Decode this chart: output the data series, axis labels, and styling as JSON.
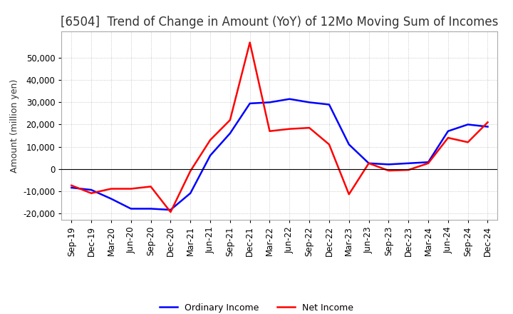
{
  "title": "[6504]  Trend of Change in Amount (YoY) of 12Mo Moving Sum of Incomes",
  "ylabel": "Amount (million yen)",
  "ylim": [
    -23000,
    62000
  ],
  "yticks": [
    -20000,
    -10000,
    0,
    10000,
    20000,
    30000,
    40000,
    50000
  ],
  "legend_labels": [
    "Ordinary Income",
    "Net Income"
  ],
  "line_colors": [
    "blue",
    "red"
  ],
  "x_labels": [
    "Sep-19",
    "Dec-19",
    "Mar-20",
    "Jun-20",
    "Sep-20",
    "Dec-20",
    "Mar-21",
    "Jun-21",
    "Sep-21",
    "Dec-21",
    "Mar-22",
    "Jun-22",
    "Sep-22",
    "Dec-22",
    "Mar-23",
    "Jun-23",
    "Sep-23",
    "Dec-23",
    "Mar-24",
    "Jun-24",
    "Sep-24",
    "Dec-24"
  ],
  "ordinary_income": [
    -8500,
    -9500,
    -13500,
    -18000,
    -18000,
    -18500,
    -11000,
    6000,
    16000,
    29500,
    30000,
    31500,
    30000,
    29000,
    11000,
    2500,
    2000,
    2500,
    3000,
    17000,
    20000,
    19000
  ],
  "net_income": [
    -7500,
    -11000,
    -9000,
    -9000,
    -8000,
    -19500,
    -1000,
    13000,
    22000,
    57000,
    17000,
    18000,
    18500,
    11000,
    -11500,
    2500,
    -800,
    -500,
    2500,
    14000,
    12000,
    21000
  ],
  "background_color": "#ffffff",
  "grid_color": "#bbbbbb",
  "title_color": "#333333",
  "title_fontsize": 12,
  "tick_fontsize": 8.5
}
